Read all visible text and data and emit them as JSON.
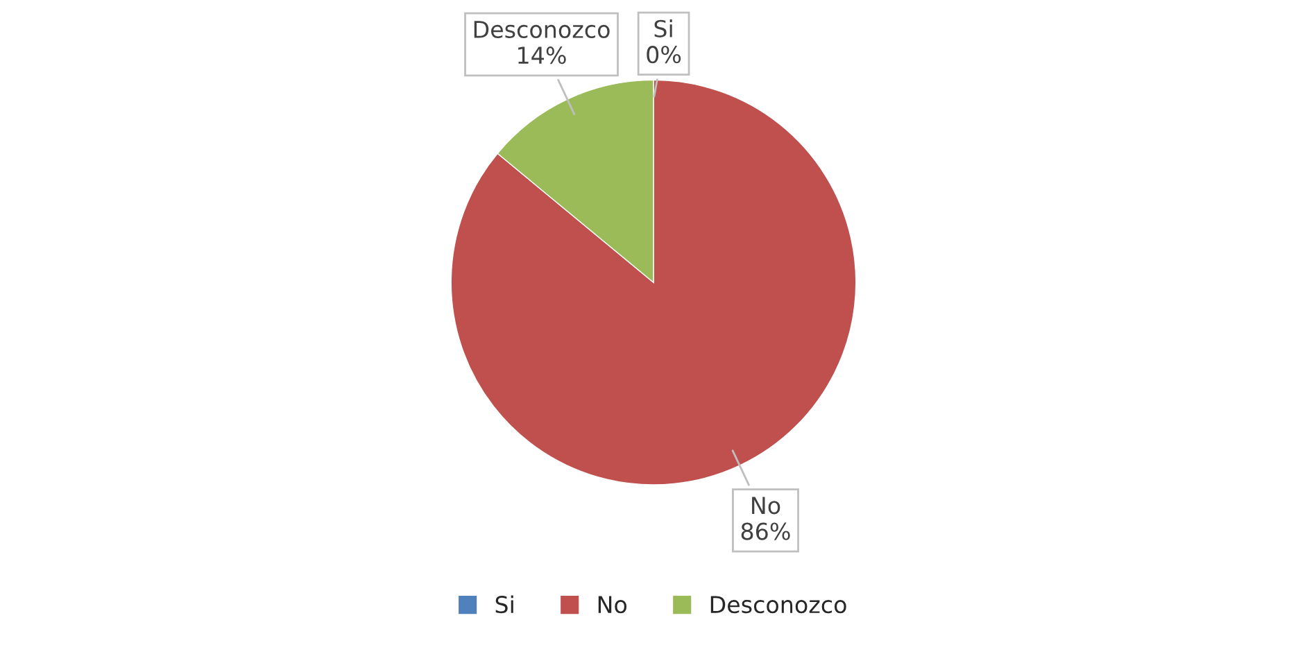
{
  "chart_data": {
    "type": "pie",
    "categories": [
      "Si",
      "No",
      "Desconozco"
    ],
    "values": [
      0,
      86,
      14
    ],
    "value_labels": [
      "0%",
      "86%",
      "14%"
    ],
    "colors": [
      "#4f81bd",
      "#c0504d",
      "#9bbb59"
    ],
    "legend": "bottom"
  }
}
